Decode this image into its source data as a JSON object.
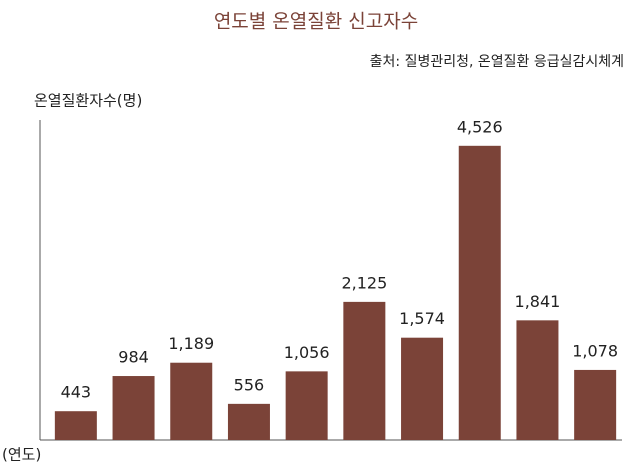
{
  "chart_data": {
    "type": "bar",
    "title": "연도별 온열질환 신고자수",
    "subtitle": "출처: 질병관리청, 온열질환 응급실감시체계",
    "y_label": "온열질환자수(명)",
    "x_label": "(연도)",
    "categories": [
      null,
      null,
      null,
      null,
      null,
      null,
      null,
      null,
      null,
      null
    ],
    "values": [
      443,
      984,
      1189,
      556,
      1056,
      2125,
      1574,
      4526,
      1841,
      1078
    ],
    "value_labels": [
      "443",
      "984",
      "1,189",
      "556",
      "1,056",
      "2,125",
      "1,574",
      "4,526",
      "1,841",
      "1,078"
    ],
    "color": "#7b4338",
    "ylim": [
      0,
      5000
    ]
  }
}
